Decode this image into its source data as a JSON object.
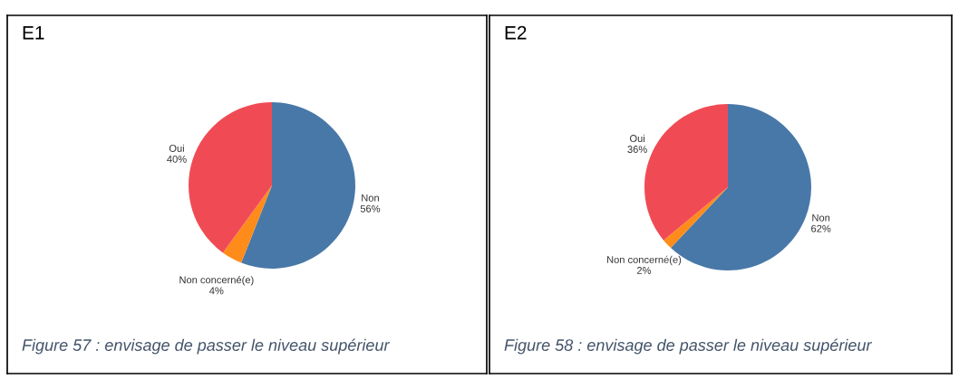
{
  "chart_data": [
    {
      "type": "pie",
      "title": "E1",
      "categories": [
        "Non",
        "Non concerné(e)",
        "Oui"
      ],
      "values": [
        56,
        4,
        40
      ],
      "colors": [
        "#4878a8",
        "#ff8c1a",
        "#f04b55"
      ],
      "value_labels": [
        "56%",
        "4%",
        "40%"
      ],
      "annotations": [
        "Figure 57 : envisage de passer le niveau supérieur"
      ]
    },
    {
      "type": "pie",
      "title": "E2",
      "categories": [
        "Non",
        "Non concerné(e)",
        "Oui"
      ],
      "values": [
        62,
        2,
        36
      ],
      "colors": [
        "#4878a8",
        "#ff8c1a",
        "#f04b55"
      ],
      "value_labels": [
        "62%",
        "2%",
        "36%"
      ],
      "annotations": [
        "Figure 58 : envisage de passer le niveau supérieur"
      ]
    }
  ]
}
